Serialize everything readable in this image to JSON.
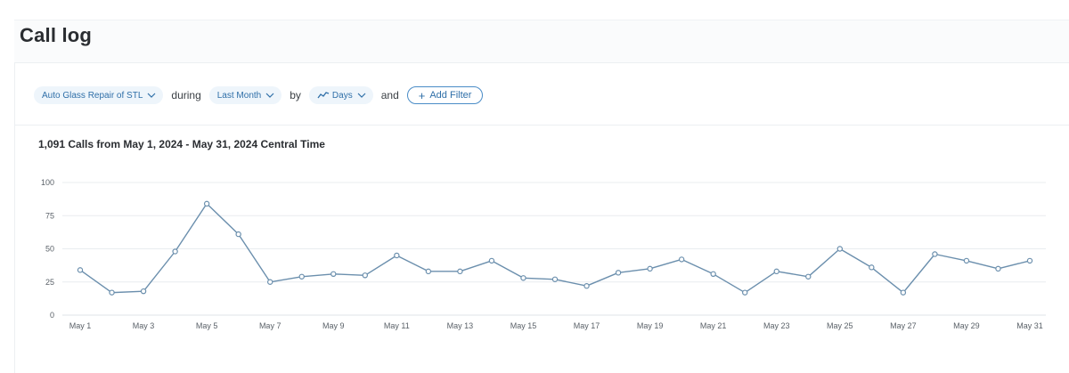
{
  "page": {
    "title": "Call log"
  },
  "filters": {
    "account_label": "Auto Glass Repair of STL",
    "joiner_during": "during",
    "range_label": "Last Month",
    "joiner_by": "by",
    "interval_label": "Days",
    "joiner_and": "and",
    "add_filter_label": "Add Filter",
    "icons": {
      "dropdown": "chevron-down-icon",
      "interval": "trend-line-icon",
      "add": "plus-icon"
    }
  },
  "summary": {
    "heading": "1,091 Calls from May 1, 2024 - May 31, 2024 Central Time"
  },
  "colors": {
    "accent": "#2f6fa8",
    "line": "#6b8fad",
    "grid": "#e9ecef"
  },
  "chart_data": {
    "type": "line",
    "title": "",
    "xlabel": "",
    "ylabel": "",
    "ylim": [
      0,
      100
    ],
    "yticks": [
      0,
      25,
      50,
      75,
      100
    ],
    "grid": true,
    "x": [
      "May 1",
      "May 2",
      "May 3",
      "May 4",
      "May 5",
      "May 6",
      "May 7",
      "May 8",
      "May 9",
      "May 10",
      "May 11",
      "May 12",
      "May 13",
      "May 14",
      "May 15",
      "May 16",
      "May 17",
      "May 18",
      "May 19",
      "May 20",
      "May 21",
      "May 22",
      "May 23",
      "May 24",
      "May 25",
      "May 26",
      "May 27",
      "May 28",
      "May 29",
      "May 30",
      "May 31"
    ],
    "xtick_labels": [
      "May 1",
      "May 3",
      "May 5",
      "May 7",
      "May 9",
      "May 11",
      "May 13",
      "May 15",
      "May 17",
      "May 19",
      "May 21",
      "May 23",
      "May 25",
      "May 27",
      "May 29",
      "May 31"
    ],
    "series": [
      {
        "values": [
          34,
          17,
          18,
          48,
          84,
          61,
          25,
          29,
          31,
          30,
          45,
          33,
          33,
          41,
          28,
          27,
          22,
          32,
          35,
          42,
          31,
          17,
          33,
          29,
          50,
          36,
          17,
          46,
          41,
          35,
          41
        ]
      }
    ]
  }
}
